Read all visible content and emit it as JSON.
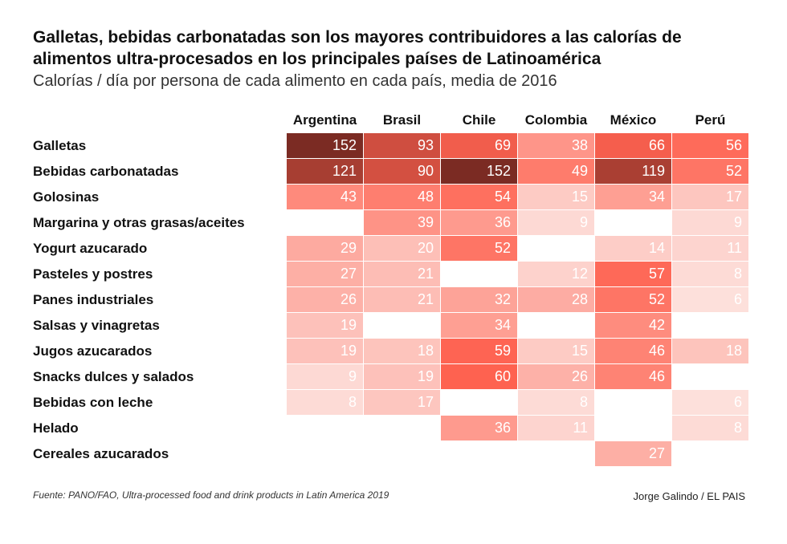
{
  "title": "Galletas, bebidas carbonatadas son los mayores contribuidores a las calorías de alimentos ultra-procesados en los principales países de Latinoamérica",
  "subtitle": "Calorías / día por persona de cada alimento en cada país, media de 2016",
  "source": "Fuente: PANO/FAO, Ultra-processed food and drink products in Latin America 2019",
  "credit": "Jorge Galindo / EL PAIS",
  "chart_data": {
    "type": "heatmap",
    "columns": [
      "Argentina",
      "Brasil",
      "Chile",
      "Colombia",
      "México",
      "Perú"
    ],
    "rows": [
      {
        "label": "Galletas",
        "values": [
          152,
          93,
          69,
          38,
          66,
          56
        ]
      },
      {
        "label": "Bebidas carbonatadas",
        "values": [
          121,
          90,
          152,
          49,
          119,
          52
        ]
      },
      {
        "label": "Golosinas",
        "values": [
          43,
          48,
          54,
          15,
          34,
          17
        ]
      },
      {
        "label": "Margarina y otras grasas/aceites",
        "values": [
          null,
          39,
          36,
          9,
          null,
          9
        ]
      },
      {
        "label": "Yogurt azucarado",
        "values": [
          29,
          20,
          52,
          null,
          14,
          11
        ]
      },
      {
        "label": "Pasteles y postres",
        "values": [
          27,
          21,
          null,
          12,
          57,
          8
        ]
      },
      {
        "label": "Panes industriales",
        "values": [
          26,
          21,
          32,
          28,
          52,
          6
        ]
      },
      {
        "label": "Salsas y vinagretas",
        "values": [
          19,
          null,
          34,
          null,
          42,
          null
        ]
      },
      {
        "label": "Jugos azucarados",
        "values": [
          19,
          18,
          59,
          15,
          46,
          18
        ]
      },
      {
        "label": "Snacks dulces y salados",
        "values": [
          9,
          19,
          60,
          26,
          46,
          null
        ]
      },
      {
        "label": "Bebidas con leche",
        "values": [
          8,
          17,
          null,
          8,
          null,
          6
        ]
      },
      {
        "label": "Helado",
        "values": [
          null,
          null,
          36,
          11,
          null,
          8
        ]
      },
      {
        "label": "Cereales azucarados",
        "values": [
          null,
          null,
          null,
          null,
          27,
          null
        ]
      }
    ],
    "color_scale": [
      "#fde2de",
      "#fe6250",
      "#7b2b23"
    ]
  }
}
